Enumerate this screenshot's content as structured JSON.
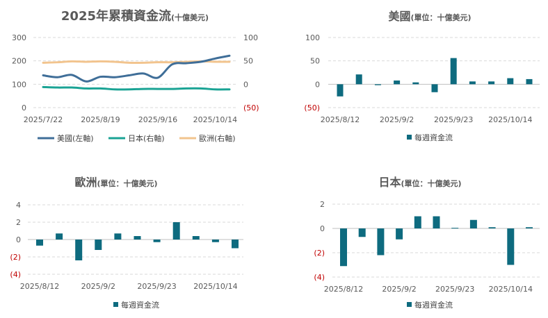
{
  "colors": {
    "us": "#3f6e98",
    "japan": "#1aa394",
    "europe": "#f2c48e",
    "bar": "#0e6b7f",
    "negative_label": "#c00000"
  },
  "chart_data": [
    {
      "type": "line",
      "title_main": "2025年累積資金流",
      "title_sub": "(十億美元)",
      "x_tick_labels": [
        "2025/7/22",
        "2025/8/19",
        "2025/9/16",
        "2025/10/14"
      ],
      "x_tick_positions": [
        0,
        4,
        8,
        12
      ],
      "x_count": 14,
      "left_axis": {
        "ylim": [
          0,
          300
        ],
        "ticks": [
          0,
          100,
          200,
          300
        ],
        "tick_labels": [
          "0",
          "100",
          "200",
          "300"
        ]
      },
      "right_axis": {
        "ylim": [
          -50,
          100
        ],
        "ticks": [
          -50,
          0,
          50,
          100
        ],
        "tick_labels": [
          "(50)",
          "0",
          "50",
          "100"
        ]
      },
      "series": [
        {
          "name": "美國(左軸)",
          "axis": "left",
          "color_key": "us",
          "values": [
            138,
            130,
            140,
            112,
            132,
            130,
            138,
            146,
            128,
            185,
            190,
            196,
            210,
            222
          ]
        },
        {
          "name": "日本(右軸)",
          "axis": "right",
          "color_key": "japan",
          "values": [
            -6,
            -7,
            -7,
            -9,
            -9,
            -11,
            -11,
            -10,
            -10,
            -10,
            -9,
            -9,
            -11,
            -11
          ]
        },
        {
          "name": "歐洲(右軸)",
          "axis": "right",
          "color_key": "europe",
          "values": [
            46,
            47,
            49,
            48,
            49,
            48,
            46,
            46,
            47,
            47,
            48,
            49,
            48,
            48
          ]
        }
      ]
    },
    {
      "type": "bar",
      "title_main": "美國",
      "title_sub": "(單位：十億美元)",
      "legend": "每週資金流",
      "ylim": [
        -50,
        100
      ],
      "ticks": [
        -50,
        0,
        50,
        100
      ],
      "tick_labels": [
        "(50)",
        "0",
        "50",
        "100"
      ],
      "x_tick_labels": [
        "2025/8/12",
        "2025/9/2",
        "2025/9/23",
        "2025/10/14"
      ],
      "x_tick_positions": [
        0,
        3,
        6,
        9
      ],
      "values": [
        -26,
        21,
        -2,
        8,
        4,
        -17,
        56,
        6,
        6,
        13,
        11
      ]
    },
    {
      "type": "bar",
      "title_main": "歐洲",
      "title_sub": "(單位：十億美元)",
      "legend": "每週資金流",
      "ylim": [
        -4,
        4
      ],
      "ticks": [
        -4,
        -2,
        0,
        2,
        4
      ],
      "tick_labels": [
        "(4)",
        "(2)",
        "0",
        "2",
        "4"
      ],
      "x_tick_labels": [
        "2025/8/12",
        "2025/9/2",
        "2025/9/23",
        "2025/10/14"
      ],
      "x_tick_positions": [
        0,
        3,
        6,
        9
      ],
      "values": [
        -0.7,
        0.7,
        -2.4,
        -1.2,
        0.7,
        0.4,
        -0.3,
        2.0,
        0.4,
        -0.3,
        -1.0
      ]
    },
    {
      "type": "bar",
      "title_main": "日本",
      "title_sub": "(單位：十億美元)",
      "legend": "每週資金流",
      "ylim": [
        -4,
        2
      ],
      "ticks": [
        -4,
        -2,
        0,
        2
      ],
      "tick_labels": [
        "(4)",
        "(2)",
        "0",
        "2"
      ],
      "x_tick_labels": [
        "2025/8/12",
        "2025/9/2",
        "2025/9/23",
        "2025/10/14"
      ],
      "x_tick_positions": [
        0,
        3,
        6,
        9
      ],
      "values": [
        -3.1,
        -0.7,
        -2.2,
        -0.9,
        1.0,
        1.0,
        0.05,
        0.7,
        0.1,
        -3.0,
        0.1
      ]
    }
  ]
}
